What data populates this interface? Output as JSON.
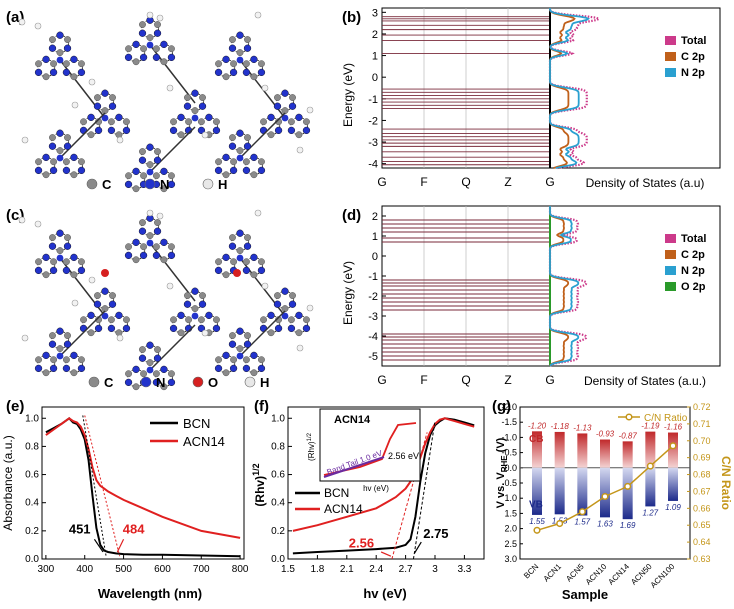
{
  "panels": {
    "a": {
      "label": "(a)",
      "legend": [
        {
          "sym": "C",
          "color": "#8a8a8a"
        },
        {
          "sym": "N",
          "color": "#2233cc"
        },
        {
          "sym": "H",
          "color": "#e8e8e8"
        }
      ]
    },
    "c": {
      "label": "(c)",
      "legend": [
        {
          "sym": "C",
          "color": "#8a8a8a"
        },
        {
          "sym": "N",
          "color": "#2233cc"
        },
        {
          "sym": "O",
          "color": "#d62020"
        },
        {
          "sym": "H",
          "color": "#e8e8e8"
        }
      ]
    },
    "b": {
      "label": "(b)",
      "ylabel": "Energy (eV)",
      "dos_label": "Density of States (a.u)"
    },
    "d": {
      "label": "(d)",
      "ylabel": "Energy (eV)",
      "dos_label": "Density of States (a.u.)"
    },
    "e": {
      "label": "(e)",
      "xlabel": "Wavelength (nm)",
      "ylabel": "Absorbance (a.u.)",
      "ann_bcn": "451",
      "ann_acn": "484"
    },
    "f": {
      "label": "(f)",
      "xlabel": "hv (eV)",
      "ylabel": "(Rhv)",
      "ylabel_sup": "1/2",
      "ann_acn": "2.56",
      "ann_bcn": "2.75",
      "inset": {
        "title": "ACN14",
        "ylabel": "(Rhv)",
        "ylabel_sup": "1/2",
        "xlabel": "hv (eV)",
        "band_tail": "Band Tail 1.0 eV",
        "edge": "2.56 eV"
      }
    },
    "g": {
      "label": "(g)",
      "xlabel": "Sample",
      "ylabel_right": "C/N Ratio",
      "legend": "C/N Ratio",
      "cb": "CB",
      "vb": "VB"
    }
  },
  "chart_data": [
    {
      "type": "line",
      "panel": "b",
      "title": "",
      "xlabel": "",
      "ylabel": "Energy (eV)",
      "k_path": [
        "G",
        "F",
        "Q",
        "Z",
        "G"
      ],
      "ylim": [
        -4.2,
        3.2
      ],
      "yticks": [
        3,
        2,
        1,
        0,
        -1,
        -2,
        -3,
        -4
      ],
      "dos_series": [
        {
          "name": "Total",
          "color": "#cc3a8a"
        },
        {
          "name": "C 2p",
          "color": "#c0601a"
        },
        {
          "name": "N 2p",
          "color": "#2aa0d0"
        }
      ]
    },
    {
      "type": "line",
      "panel": "d",
      "title": "",
      "xlabel": "",
      "ylabel": "Energy (eV)",
      "k_path": [
        "G",
        "F",
        "Q",
        "Z",
        "G"
      ],
      "ylim": [
        -5.5,
        2.5
      ],
      "yticks": [
        2,
        1,
        0,
        -1,
        -2,
        -3,
        -4,
        -5
      ],
      "dos_series": [
        {
          "name": "Total",
          "color": "#cc3a8a"
        },
        {
          "name": "C 2p",
          "color": "#c0601a"
        },
        {
          "name": "N 2p",
          "color": "#2aa0d0"
        },
        {
          "name": "O 2p",
          "color": "#2a9a2a"
        }
      ]
    },
    {
      "type": "line",
      "panel": "e",
      "xlabel": "Wavelength (nm)",
      "ylabel": "Absorbance (a.u.)",
      "xlim": [
        290,
        810
      ],
      "ylim": [
        0,
        1.08
      ],
      "xticks": [
        300,
        400,
        500,
        600,
        700,
        800
      ],
      "yticks": [
        0,
        0.2,
        0.4,
        0.6,
        0.8,
        1.0
      ],
      "series": [
        {
          "name": "BCN",
          "color": "#000000",
          "x": [
            300,
            320,
            340,
            360,
            370,
            380,
            390,
            400,
            410,
            420,
            430,
            440,
            450,
            460,
            480,
            500,
            550,
            600,
            700,
            800
          ],
          "y": [
            0.9,
            0.93,
            0.96,
            1.0,
            0.97,
            0.96,
            0.92,
            0.85,
            0.7,
            0.45,
            0.22,
            0.1,
            0.06,
            0.05,
            0.04,
            0.035,
            0.03,
            0.03,
            0.025,
            0.02
          ]
        },
        {
          "name": "ACN14",
          "color": "#e02020",
          "x": [
            300,
            320,
            340,
            360,
            370,
            380,
            390,
            400,
            410,
            420,
            430,
            440,
            450,
            460,
            480,
            500,
            550,
            600,
            700,
            800
          ],
          "y": [
            0.88,
            0.92,
            0.96,
            1.0,
            0.98,
            0.97,
            0.94,
            0.88,
            0.78,
            0.65,
            0.56,
            0.52,
            0.5,
            0.48,
            0.45,
            0.42,
            0.36,
            0.3,
            0.2,
            0.15
          ]
        }
      ]
    },
    {
      "type": "line",
      "panel": "f",
      "xlabel": "hv (eV)",
      "ylabel": "(Rhv)^1/2",
      "xlim": [
        1.5,
        3.5
      ],
      "ylim": [
        0,
        1.08
      ],
      "xticks": [
        1.5,
        1.8,
        2.1,
        2.4,
        2.7,
        3.0,
        3.3
      ],
      "yticks": [
        0,
        0.2,
        0.4,
        0.6,
        0.8,
        1.0
      ],
      "series": [
        {
          "name": "BCN",
          "color": "#000000",
          "x": [
            1.55,
            1.8,
            2.1,
            2.4,
            2.6,
            2.7,
            2.75,
            2.8,
            2.85,
            2.9,
            2.95,
            3.0,
            3.05,
            3.1,
            3.2,
            3.3,
            3.4
          ],
          "y": [
            0.04,
            0.05,
            0.06,
            0.07,
            0.08,
            0.1,
            0.14,
            0.3,
            0.55,
            0.75,
            0.88,
            0.95,
            0.98,
            1.0,
            0.99,
            0.97,
            0.95
          ]
        },
        {
          "name": "ACN14",
          "color": "#e02020",
          "x": [
            1.55,
            1.8,
            2.1,
            2.4,
            2.5,
            2.6,
            2.7,
            2.75,
            2.8,
            2.85,
            2.9,
            2.95,
            3.0,
            3.05,
            3.1,
            3.2,
            3.3,
            3.4
          ],
          "y": [
            0.2,
            0.24,
            0.3,
            0.36,
            0.4,
            0.44,
            0.5,
            0.55,
            0.62,
            0.72,
            0.82,
            0.9,
            0.96,
            0.99,
            1.0,
            0.98,
            0.96,
            0.94
          ]
        }
      ]
    },
    {
      "type": "bar",
      "panel": "g",
      "xlabel": "Sample",
      "ylabel": "V vs. VRHE (V)",
      "ylabel_right": "C/N Ratio",
      "categories": [
        "BCN",
        "ACN1",
        "ACN5",
        "ACN10",
        "ACN14",
        "ACN50",
        "ACN100"
      ],
      "cb": [
        -1.2,
        -1.18,
        -1.13,
        -0.93,
        -0.87,
        -1.19,
        -1.16
      ],
      "cb_labels": [
        "-1.20",
        "-1.18",
        "-1.13",
        "-0.93",
        "-0.87",
        "-1.19",
        "-1.16"
      ],
      "vb": [
        1.55,
        1.53,
        1.57,
        1.63,
        1.69,
        1.27,
        1.09
      ],
      "vb_labels": [
        "1.55",
        "1.53",
        "1.57",
        "1.63",
        "1.69",
        "1.27",
        "1.09"
      ],
      "cn_ratio": [
        0.647,
        0.651,
        0.658,
        0.667,
        0.673,
        0.685,
        0.697
      ],
      "ylim": [
        -2.0,
        3.0
      ],
      "yticks": [
        "-2.0",
        "-1.5",
        "-1.0",
        "-0.5",
        "0.0",
        "0.5",
        "1.0",
        "1.5",
        "2.0",
        "2.5",
        "3.0"
      ],
      "ylim_right": [
        0.63,
        0.72
      ],
      "yticks_right": [
        "0.72",
        "0.71",
        "0.70",
        "0.69",
        "0.68",
        "0.67",
        "0.66",
        "0.65",
        "0.64",
        "0.63"
      ]
    }
  ],
  "colors": {
    "total": "#cc3a8a",
    "c2p": "#c0601a",
    "n2p": "#2aa0d0",
    "o2p": "#2a9a2a",
    "band": "#7a2a3a",
    "cn": "#c4961a",
    "red": "#e02020"
  }
}
